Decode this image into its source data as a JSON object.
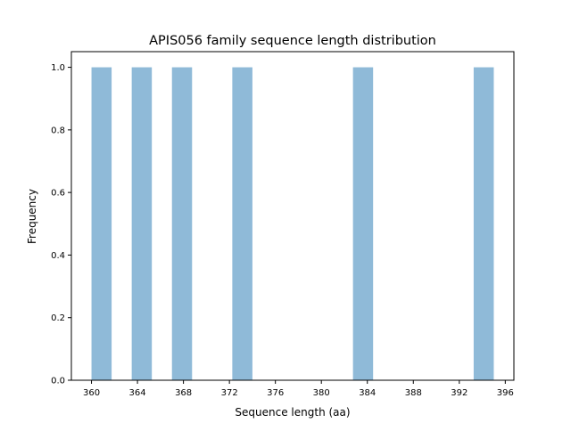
{
  "chart_data": {
    "type": "bar",
    "title": "APIS056 family sequence length distribution",
    "xlabel": "Sequence length (aa)",
    "ylabel": "Frequency",
    "xlim": [
      358.25,
      396.75
    ],
    "ylim": [
      0,
      1.05
    ],
    "xticks": [
      360,
      364,
      368,
      372,
      376,
      380,
      384,
      388,
      392,
      396
    ],
    "yticks": [
      "0.0",
      "0.2",
      "0.4",
      "0.6",
      "0.8",
      "1.0"
    ],
    "bin_width": 1.75,
    "bins": [
      {
        "start": 360.0,
        "count": 1
      },
      {
        "start": 363.5,
        "count": 1
      },
      {
        "start": 367.0,
        "count": 1
      },
      {
        "start": 372.25,
        "count": 1
      },
      {
        "start": 382.75,
        "count": 1
      },
      {
        "start": 393.25,
        "count": 1
      }
    ],
    "bar_color": "#8fbad8",
    "grid": false,
    "legend": "none"
  }
}
